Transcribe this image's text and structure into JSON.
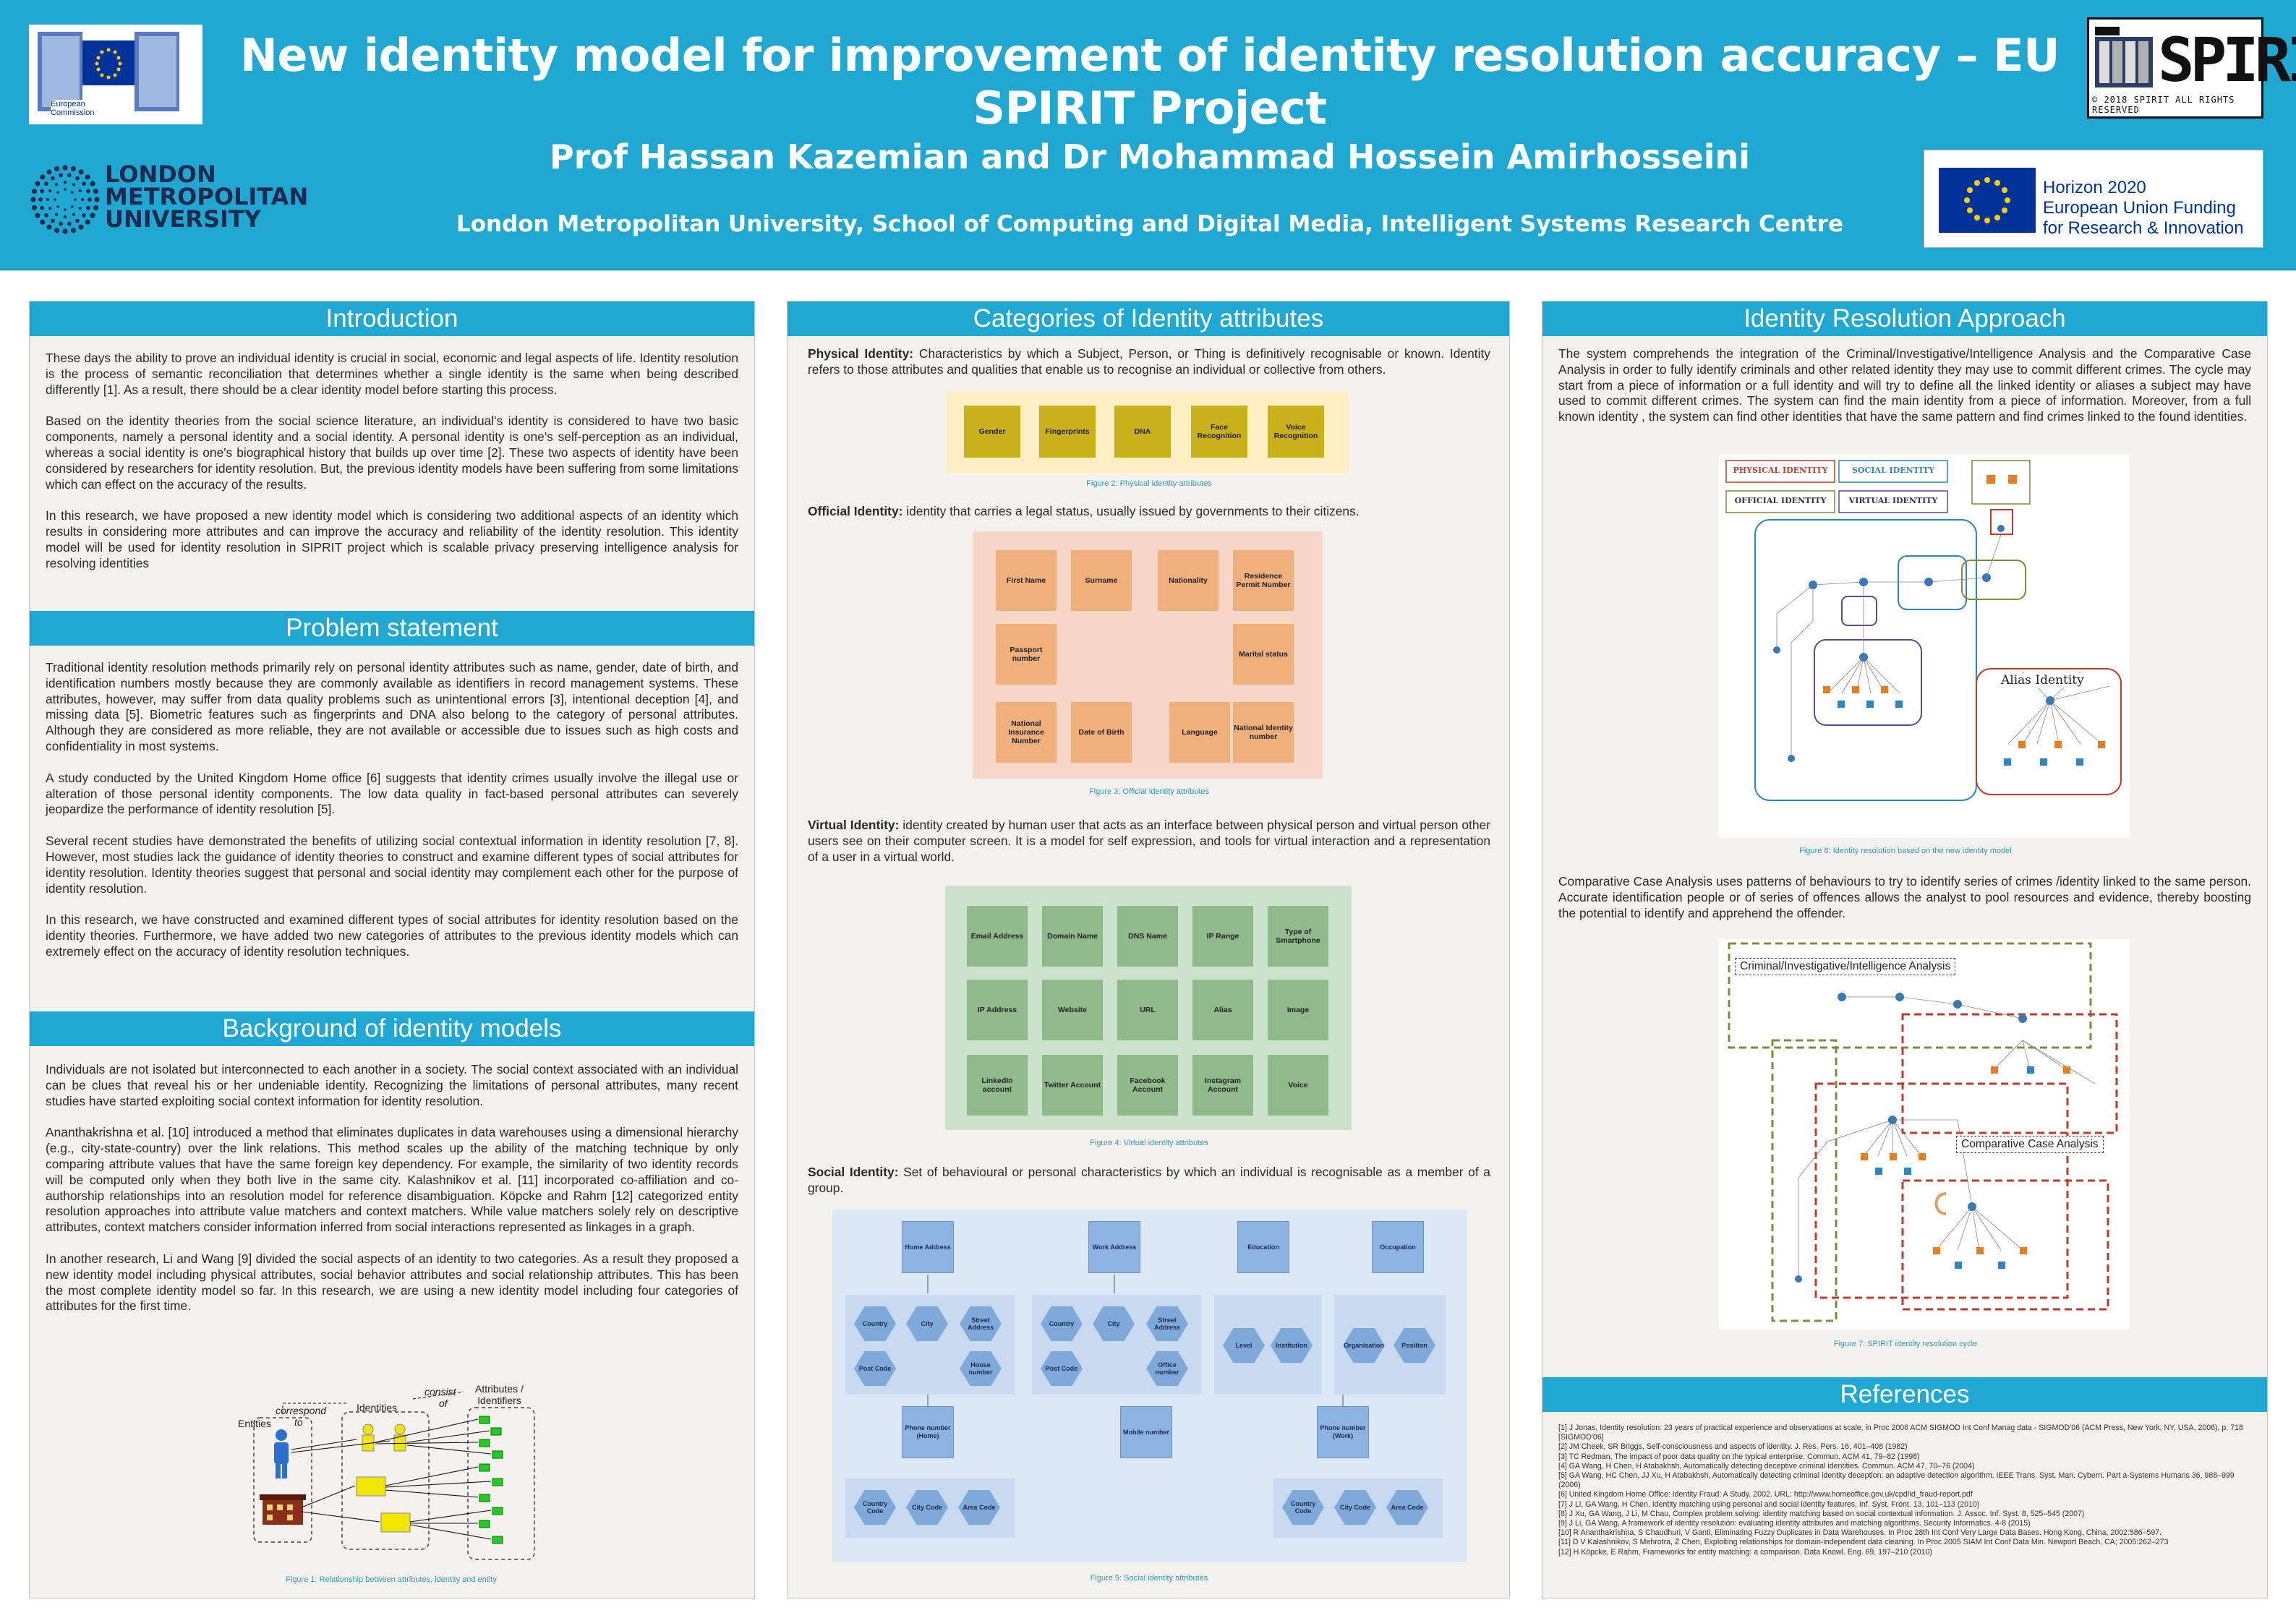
{
  "header": {
    "title": "New identity model for improvement of identity resolution accuracy – EU SPIRIT Project",
    "authors": "Prof Hassan Kazemian and Dr Mohammad Hossein Amirhosseini",
    "affiliation": "London Metropolitan University, School of Computing and Digital Media, Intelligent Systems Research Centre",
    "ec_logo_text": "European Commission",
    "lmu_logo_text": [
      "LONDON",
      "METROPOLITAN",
      "UNIVERSITY"
    ],
    "spirit_logo_text": "SPIRIT",
    "spirit_copyright": "© 2018 SPIRIT ALL RIGHTS RESERVED",
    "h2020_text": [
      "Horizon 2020",
      "European Union Funding",
      "for Research & Innovation"
    ]
  },
  "colors": {
    "header_bg": "#21a8d2",
    "section_head": "#21a8d2",
    "panel_bg": "#f4f2ec"
  },
  "introduction": {
    "heading": "Introduction",
    "paragraphs": [
      "These days the ability to prove an individual identity is crucial in social, economic and legal aspects of life. Identity resolution is the process of semantic reconciliation that determines whether a single identity is the same when being described differently [1]. As a result, there should be a clear identity model before starting this process.",
      "Based on the identity theories from the social science literature, an individual's identity is considered to have two basic components, namely a personal identity and a social identity. A personal identity is one's self-perception as an individual, whereas a social identity is one's biographical history that builds up over time [2]. These two aspects of identity have been considered by researchers for identity resolution. But, the previous identity models have been suffering from some limitations which can effect on the accuracy of the results.",
      "In this research, we have proposed a new identity model which is considering two additional aspects of an identity which results in considering more attributes and can improve the accuracy and reliability of the identity resolution. This identity model will be used for identity resolution in SIPRIT project which is scalable privacy preserving intelligence analysis for resolving identities"
    ]
  },
  "problem": {
    "heading": "Problem statement",
    "paragraphs": [
      "Traditional identity resolution methods primarily rely on personal identity attributes such as name, gender, date of birth, and identification numbers mostly because they are commonly available as identifiers in record management systems. These attributes, however, may suffer from data quality problems such as unintentional errors [3], intentional deception [4], and missing data [5]. Biometric features such as fingerprints and DNA also belong to the category of personal attributes. Although they are considered as more reliable, they are not available or accessible due to issues such as high costs and confidentiality in most systems.",
      "A study conducted by the United Kingdom Home office [6] suggests that identity crimes usually involve the illegal use or alteration of those personal identity components. The low data quality in fact-based personal attributes can severely jeopardize the performance of identity resolution [5].",
      "Several recent studies have demonstrated the benefits of utilizing social contextual information in identity resolution [7, 8]. However, most studies lack the guidance of identity theories to construct and examine different types of social attributes for identity resolution. Identity theories suggest that personal and social identity may complement each other for the purpose of identity resolution.",
      "In this research, we have constructed and examined different types of social attributes for identity resolution based on the identity theories. Furthermore, we have added two new categories of attributes to the previous identity models which can extremely effect on the accuracy of identity resolution techniques."
    ]
  },
  "background": {
    "heading": "Background of identity models",
    "paragraphs": [
      "Individuals are not isolated but interconnected to each another in a society. The social context associated with an individual can be clues that reveal his or her undeniable identity. Recognizing the limitations of personal attributes, many recent studies have started exploiting social context information for identity resolution.",
      "Ananthakrishna et al. [10] introduced a method that eliminates duplicates in data warehouses using a dimensional hierarchy (e.g., city-state-country) over the link relations. This method scales up the ability of the matching technique by only comparing attribute values that have the same foreign key dependency. For example, the similarity of two identity records will be computed only when they both live in the same city. Kalashnikov et al. [11] incorporated co-affiliation and co-authorship relationships into an resolution model for reference disambiguation. Köpcke and Rahm [12] categorized entity resolution approaches into attribute value matchers and context matchers. While value matchers solely rely on descriptive attributes, context matchers consider information inferred from social interactions represented as linkages in a graph.",
      "In another research, Li and Wang [9] divided the social aspects of an identity to two categories. As a result they proposed a new identity model including physical attributes, social behavior attributes and social relationship attributes. This has been the most complete identity model so far. In this research, we are using a new identity model including four categories of attributes for the first time."
    ],
    "fig1": {
      "entities": "Entities",
      "correspond_to": [
        "correspond",
        "to"
      ],
      "identities": "Identities",
      "consist_of": [
        "consist",
        "of"
      ],
      "attributes": [
        "Attributes /",
        "Identifiers"
      ],
      "caption": "Figure 1: Relationship between attributes, identity and entity"
    }
  },
  "categories": {
    "heading": "Categories of Identity attributes",
    "physical": {
      "label": "Physical Identity:",
      "text": " Characteristics by which a Subject, Person, or Thing is definitively recognisable or known. Identity refers to those attributes and qualities that enable us to recognise an individual or collective from others.",
      "items": [
        "Gender",
        "Fingerprints",
        "DNA",
        "Face Recognition",
        "Voice Recognition"
      ],
      "caption": "Figure 2: Physical identity attributes"
    },
    "official": {
      "label": "Official Identity:",
      "text": " identity that carries a legal status, usually issued by governments to their citizens.",
      "items": [
        "First Name",
        "Surname",
        "Nationality",
        "Residence Permit Number",
        "Passport number",
        "Marital status",
        "National Insurance Number",
        "Date of Birth",
        "Language",
        "National Identity number"
      ],
      "caption": "Figure 3: Official identity attributes"
    },
    "virtual": {
      "label": "Virtual Identity:",
      "text": " identity created by human user that acts as an interface between physical person and virtual person other users see on their computer screen. It is a model for self expression, and tools for virtual interaction and a representation of a user in a virtual world.",
      "items": [
        "Email Address",
        "Domain Name",
        "DNS Name",
        "IP Range",
        "Type of Smartphone",
        "IP Address",
        "Website",
        "URL",
        "Alias",
        "Image",
        "LinkedIn account",
        "Twitter Account",
        "Facebook Account",
        "Instagram Account",
        "Voice"
      ],
      "caption": "Figure 4: Virtual identity attributes"
    },
    "social": {
      "label": "Social Identity:",
      "text": " Set of behavioural or personal characteristics by which an individual is recognisable as a member of a group.",
      "top": [
        "Home Address",
        "Work Address",
        "Education",
        "Occupation"
      ],
      "home_hex": [
        "Country",
        "City",
        "Street Address",
        "Post Code",
        "House number"
      ],
      "work_hex": [
        "Country",
        "City",
        "Street Address",
        "Post Code",
        "Office number"
      ],
      "edu_hex": [
        "Level",
        "Institution"
      ],
      "occ_hex": [
        "Organisation",
        "Position"
      ],
      "phones": [
        "Phone number (Home)",
        "Mobile number",
        "Phone number (Work)"
      ],
      "phone_hex": [
        "Country Code",
        "City Code",
        "Area Code"
      ],
      "caption": "Figure 5: Social identity attributes"
    }
  },
  "approach": {
    "heading": "Identity Resolution Approach",
    "p1": "The system comprehends the integration of the Criminal/Investigative/Intelligence Analysis and the Comparative Case Analysis in order to fully identify criminals and other related identity they may use to commit different crimes. The cycle may start from a piece of information or a full identity and will try to define all the linked identity or aliases a subject may have used to commit different crimes. The system can find the main identity from a piece of information. Moreover, from a full known identity , the system can find other identities that have the same pattern and find crimes linked to the found identities.",
    "fig6_labels": [
      "PHYSICAL IDENTITY",
      "SOCIAL IDENTITY",
      "OFFICIAL IDENTITY",
      "VIRTUAL IDENTITY",
      "Alias Identity"
    ],
    "fig6_caption": "Figure 6: Identity resolution based on the new identity model",
    "p2": "Comparative Case Analysis uses patterns of behaviours to try to identify series of crimes /identity linked to the same person. Accurate identification people or of series of offences allows the analyst to pool resources and evidence, thereby boosting the potential to identify and apprehend the offender.",
    "fig7_labels": [
      "Criminal/Investigative/Intelligence Analysis",
      "Comparative Case Analysis"
    ],
    "fig7_caption": "Figure 7: SPIRIT identity resolution cycle"
  },
  "references": {
    "heading": "References",
    "items": [
      "[1] J Jonas, Identity resolution: 23 years of practical experience and observations at scale, in Proc 2006 ACM SIGMOD Int Conf Manag data - SIGMOD'06 (ACM Press, New York, NY, USA, 2006), p. 718 [SIGMOD'06]",
      "[2] JM Cheek, SR Briggs, Self-consciousness and aspects of identity. J. Res. Pers. 16, 401–408 (1982)",
      "[3] TC Redman, The impact of poor data quality on the typical enterprise. Commun. ACM 41, 79–82 (1998)",
      "[4] GA Wang, H Chen, H Atabakhsh, Automatically detecting deceptive criminal identities. Commun. ACM 47, 70–76 (2004)",
      "[5] GA Wang, HC Chen, JJ Xu, H Atabakhsh, Automatically detecting criminal identity deception: an adaptive detection algorithm. IEEE Trans. Syst. Man. Cybern. Part a-Systems Humans 36, 988–999 (2006)",
      "[6] United Kingdom Home Office: Identity Fraud: A Study. 2002. URL: http://www.homeoffice.gov.uk/cpd/id_fraud-report.pdf",
      "[7] J Li, GA Wang, H Chen, Identity matching using personal and social identity features. Inf. Syst. Front. 13, 101–113 (2010)",
      "[8] J Xu, GA Wang, J Li, M Chau, Complex problem solving: identity matching based on social contextual information. J. Assoc. Inf. Syst. 8, 525–545 (2007)",
      "[9] J Li, GA Wang, A framework of identity resolution: evaluating identity attributes and matching algorithms. Security Informatics. 4-8 (2015)",
      "[10] R Ananthakrishna, S Chaudhuri, V Ganti, Eliminating Fuzzy Duplicates in Data Warehouses. In Proc 28th Int Conf Very Large Data Bases. Hong Kong, China; 2002:586–597.",
      "[11] D V Kalashnikov, S Mehrotra, Z Chen, Exploiting relationships for domain-independent data cleaning. In Proc 2005 SIAM Int Conf Data Min. Newport Beach, CA; 2005:262–273",
      "[12] H Köpcke, E Rahm, Frameworks for entity matching: a comparison. Data Knowl. Eng. 69, 197–210 (2010)"
    ]
  }
}
